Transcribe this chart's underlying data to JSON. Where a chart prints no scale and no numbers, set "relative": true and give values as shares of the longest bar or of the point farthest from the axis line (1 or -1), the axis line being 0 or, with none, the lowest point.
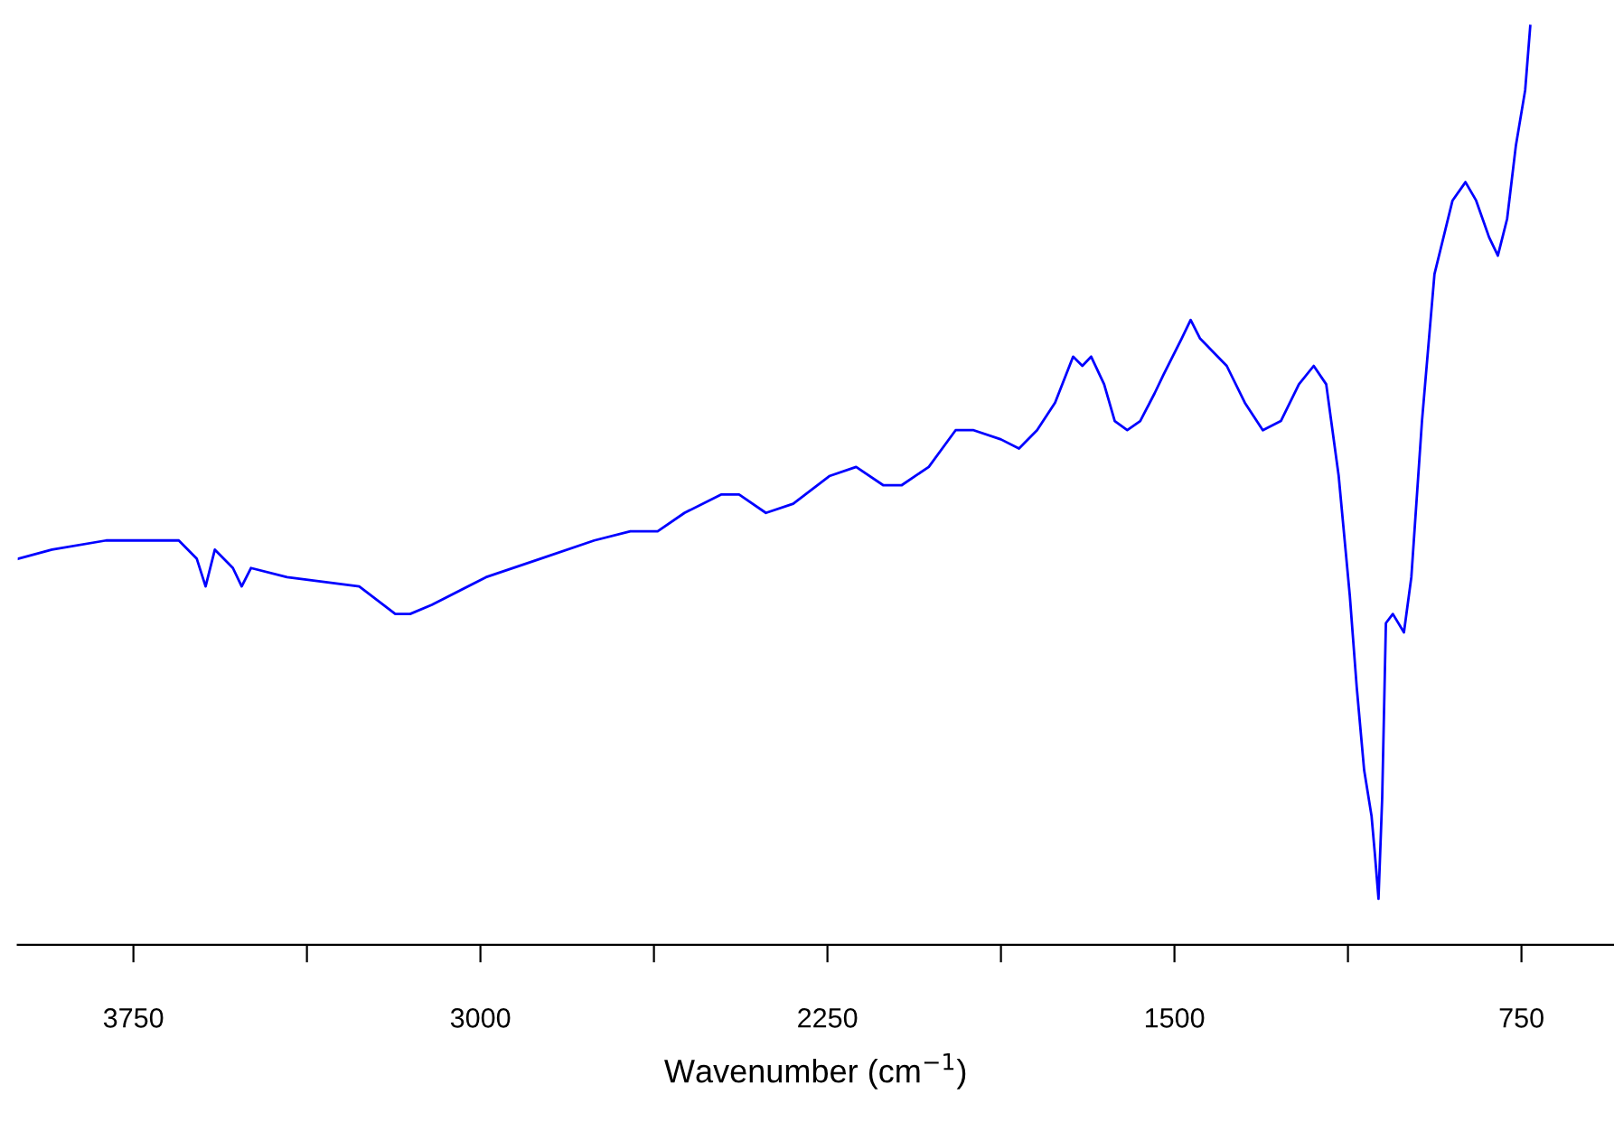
{
  "chart_data": {
    "type": "line",
    "xlabel": "Wavenumber (cm$^{−1}$)",
    "relative": true,
    "color": "#0000ff",
    "xlim": [
      4000,
      550
    ],
    "xticks": [
      {
        "value": 3750,
        "label": "3750"
      },
      {
        "value": 3375,
        "label": null
      },
      {
        "value": 3000,
        "label": "3000"
      },
      {
        "value": 2625,
        "label": null
      },
      {
        "value": 2250,
        "label": "2250"
      },
      {
        "value": 1875,
        "label": null
      },
      {
        "value": 1500,
        "label": "1500"
      },
      {
        "value": 1125,
        "label": null
      },
      {
        "value": 750,
        "label": "750"
      }
    ],
    "tick_labels": "x",
    "grid": false,
    "legend": false,
    "x": [
      4000,
      3926,
      3809,
      3691,
      3652,
      3613,
      3594,
      3574,
      3535,
      3516,
      3496,
      3418,
      3262,
      3184,
      3152,
      3105,
      2988,
      2871,
      2754,
      2676,
      2617,
      2559,
      2480,
      2441,
      2383,
      2324,
      2246,
      2188,
      2129,
      2090,
      2031,
      1973,
      1934,
      1875,
      1836,
      1797,
      1758,
      1719,
      1699,
      1680,
      1652,
      1629,
      1602,
      1574,
      1543,
      1524,
      1484,
      1465,
      1445,
      1387,
      1348,
      1309,
      1270,
      1231,
      1199,
      1172,
      1145,
      1121,
      1106,
      1090,
      1074,
      1067,
      1059,
      1051,
      1043,
      1028,
      1004,
      988,
      965,
      938,
      899,
      871,
      848,
      820,
      801,
      781,
      762,
      742,
      731
    ],
    "values": [
      0.42,
      0.43,
      0.44,
      0.44,
      0.44,
      0.42,
      0.39,
      0.43,
      0.41,
      0.39,
      0.41,
      0.4,
      0.39,
      0.36,
      0.36,
      0.37,
      0.4,
      0.42,
      0.44,
      0.45,
      0.45,
      0.47,
      0.49,
      0.49,
      0.47,
      0.48,
      0.51,
      0.52,
      0.5,
      0.5,
      0.52,
      0.56,
      0.56,
      0.55,
      0.54,
      0.56,
      0.59,
      0.64,
      0.63,
      0.64,
      0.61,
      0.57,
      0.56,
      0.57,
      0.6,
      0.62,
      0.66,
      0.68,
      0.66,
      0.63,
      0.59,
      0.56,
      0.57,
      0.61,
      0.63,
      0.61,
      0.51,
      0.38,
      0.28,
      0.19,
      0.14,
      0.1,
      0.05,
      0.16,
      0.35,
      0.36,
      0.34,
      0.4,
      0.57,
      0.73,
      0.81,
      0.83,
      0.81,
      0.77,
      0.75,
      0.79,
      0.87,
      0.93,
      1
    ]
  }
}
